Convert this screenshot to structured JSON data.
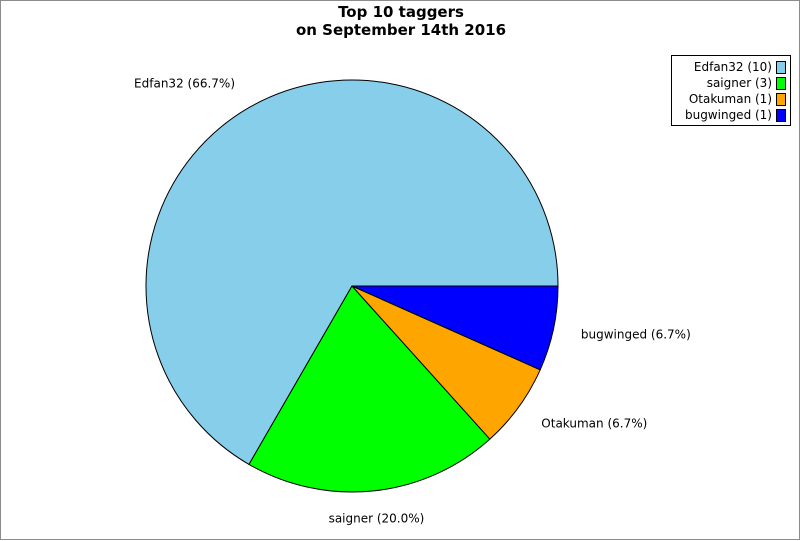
{
  "chart_data": {
    "type": "pie",
    "title": "Top 10 taggers",
    "subtitle": "on September 14th 2016",
    "slices": [
      {
        "name": "Edfan32",
        "count": 10,
        "percent": 66.7,
        "label": "Edfan32 (66.7%)",
        "legend": "Edfan32 (10)",
        "color": "#87ceeb"
      },
      {
        "name": "saigner",
        "count": 3,
        "percent": 20.0,
        "label": "saigner (20.0%)",
        "legend": "saigner (3)",
        "color": "#00ff00"
      },
      {
        "name": "Otakuman",
        "count": 1,
        "percent": 6.7,
        "label": "Otakuman (6.7%)",
        "legend": "Otakuman (1)",
        "color": "#ffa500"
      },
      {
        "name": "bugwinged",
        "count": 1,
        "percent": 6.7,
        "label": "bugwinged (6.7%)",
        "legend": "bugwinged (1)",
        "color": "#0000ff"
      }
    ],
    "legend_position": "top-right"
  }
}
